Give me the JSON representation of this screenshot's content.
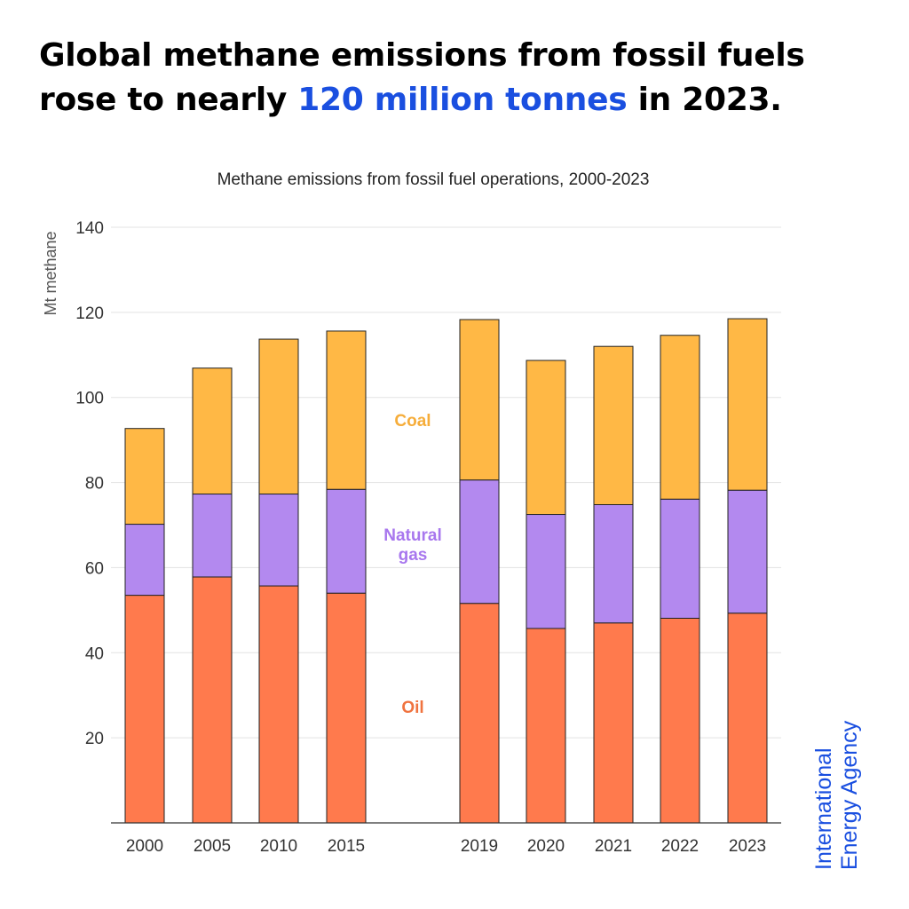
{
  "headline": {
    "text_before": "Global methane emissions from fossil fuels rose to nearly ",
    "highlight": "120 million tonnes",
    "text_after": " in 2023.",
    "highlight_color": "#1a4fe0"
  },
  "brand": {
    "line1": "International",
    "line2": "Energy Agency",
    "color": "#1a4fe0"
  },
  "chart_data": {
    "type": "bar",
    "stacked": true,
    "title": "Methane emissions from fossil fuel operations, 2000-2023",
    "xlabel": "",
    "ylabel": "Mt methane",
    "ylim": [
      0,
      140
    ],
    "yticks": [
      20,
      40,
      60,
      80,
      100,
      120,
      140
    ],
    "grid": true,
    "categories": [
      "2000",
      "2005",
      "2010",
      "2015",
      "2019",
      "2020",
      "2021",
      "2022",
      "2023"
    ],
    "series": [
      {
        "name": "Oil",
        "color": "#ff7a4d",
        "label_color": "#f0733f",
        "values": [
          53.5,
          57.8,
          55.7,
          54.0,
          51.6,
          45.7,
          47.0,
          48.1,
          49.3
        ]
      },
      {
        "name": "Natural gas",
        "color": "#b389ef",
        "label_color": "#a877ee",
        "values": [
          16.7,
          19.5,
          21.6,
          24.4,
          29.0,
          26.8,
          27.8,
          28.0,
          28.9
        ]
      },
      {
        "name": "Coal",
        "color": "#ffb845",
        "label_color": "#f6ad3a",
        "values": [
          22.5,
          29.6,
          36.4,
          37.2,
          37.7,
          36.2,
          37.2,
          38.5,
          40.3
        ]
      }
    ]
  }
}
